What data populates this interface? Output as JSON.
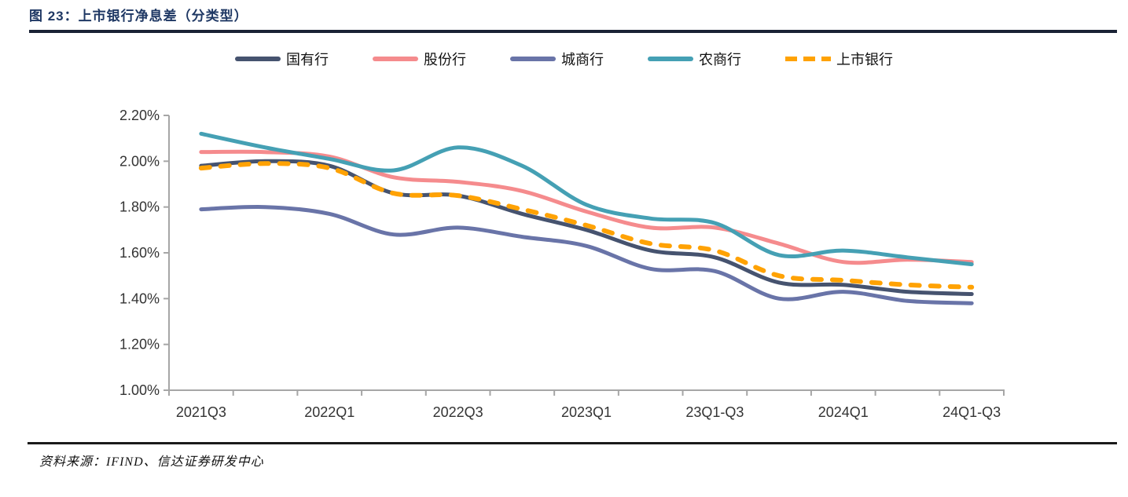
{
  "title": "图 23：上市银行净息差（分类型）",
  "footer": {
    "source_text": "资料来源：IFIND、信达证券研发中心"
  },
  "colors": {
    "title": "#1f3864",
    "title_rule": "#1a2235",
    "footer_rule": "#1a1a1a",
    "axis": "#a6a6a6",
    "tick_label": "#333333"
  },
  "chart_data": {
    "type": "line",
    "line_style": "smooth",
    "unit": "percent",
    "grid": "off",
    "legend_position": "top-center",
    "y_axis": {
      "min": 1.0,
      "max": 2.2,
      "step": 0.2,
      "tick_labels": [
        "2.20%",
        "2.00%",
        "1.80%",
        "1.60%",
        "1.40%",
        "1.20%",
        "1.00%"
      ]
    },
    "x_axis": {
      "tick_labels": [
        "2021Q3",
        "",
        "2022Q1",
        "",
        "2022Q3",
        "",
        "2023Q1",
        "",
        "23Q1-Q3",
        "",
        "2024Q1",
        "",
        "24Q1-Q3"
      ]
    },
    "series": [
      {
        "id": "state-owned-banks",
        "name": "国有行",
        "color": "#46536F",
        "dash": "solid",
        "values": [
          1.98,
          2.0,
          1.98,
          1.86,
          1.85,
          1.77,
          1.7,
          1.61,
          1.58,
          1.47,
          1.46,
          1.43,
          1.42
        ]
      },
      {
        "id": "joint-stock-banks",
        "name": "股份行",
        "color": "#F58B8D",
        "dash": "solid",
        "values": [
          2.04,
          2.04,
          2.02,
          1.93,
          1.91,
          1.87,
          1.78,
          1.71,
          1.71,
          1.64,
          1.56,
          1.57,
          1.56
        ]
      },
      {
        "id": "city-commercial-banks",
        "name": "城商行",
        "color": "#6974A8",
        "dash": "solid",
        "values": [
          1.79,
          1.8,
          1.77,
          1.68,
          1.71,
          1.67,
          1.63,
          1.53,
          1.52,
          1.4,
          1.43,
          1.39,
          1.38
        ]
      },
      {
        "id": "rural-commercial-banks",
        "name": "农商行",
        "color": "#45A0B4",
        "dash": "solid",
        "values": [
          2.12,
          2.06,
          2.01,
          1.96,
          2.06,
          1.98,
          1.81,
          1.75,
          1.73,
          1.59,
          1.61,
          1.58,
          1.55
        ]
      },
      {
        "id": "listed-banks",
        "name": "上市银行",
        "color": "#FFA203",
        "dash": "dashed",
        "values": [
          1.97,
          1.99,
          1.97,
          1.86,
          1.85,
          1.79,
          1.72,
          1.64,
          1.61,
          1.5,
          1.48,
          1.46,
          1.45
        ]
      }
    ]
  }
}
